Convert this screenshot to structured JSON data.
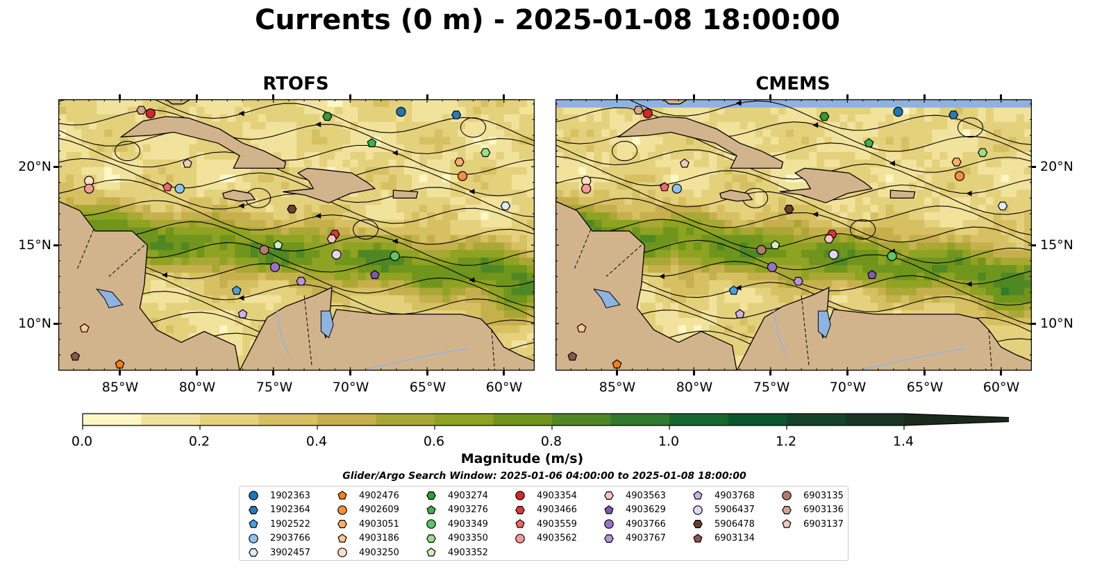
{
  "title": "Currents (0 m) - 2025-01-08 18:00:00",
  "panels": [
    {
      "title": "RTOFS"
    },
    {
      "title": "CMEMS"
    }
  ],
  "x_ticks": [
    "85°W",
    "80°W",
    "75°W",
    "70°W",
    "65°W",
    "60°W"
  ],
  "y_ticks": [
    "20°N",
    "15°N",
    "10°N"
  ],
  "colorbar": {
    "label": "Magnitude (m/s)",
    "ticks": [
      "0.0",
      "0.2",
      "0.4",
      "0.6",
      "0.8",
      "1.0",
      "1.2",
      "1.4"
    ],
    "min": 0.0,
    "max": 1.5,
    "step": 0.1,
    "extend": "max",
    "colors": [
      "#fcf7c4",
      "#f1e39c",
      "#e4d17c",
      "#d6c062",
      "#c6b04d",
      "#a9a834",
      "#8ea322",
      "#6f951c",
      "#4f8724",
      "#2f7a2c",
      "#15682f",
      "#0c552d",
      "#134428",
      "#173522",
      "#1a2a1b"
    ]
  },
  "search_window": "Glider/Argo Search Window: 2025-01-06 04:00:00 to 2025-01-08 18:00:00",
  "legend": [
    {
      "label": "1902363",
      "marker": "circle",
      "color": "#1f77b4"
    },
    {
      "label": "1902364",
      "marker": "hexagon",
      "color": "#2b7bba"
    },
    {
      "label": "1902522",
      "marker": "pentagon",
      "color": "#4aa0dc"
    },
    {
      "label": "2903766",
      "marker": "circle",
      "color": "#8ec3ee"
    },
    {
      "label": "3902457",
      "marker": "hexagon",
      "color": "#dcecfa"
    },
    {
      "label": "4902476",
      "marker": "pentagon",
      "color": "#ff7f0e"
    },
    {
      "label": "4902609",
      "marker": "circle",
      "color": "#fd8d3c"
    },
    {
      "label": "4903051",
      "marker": "hexagon",
      "color": "#fdae6b"
    },
    {
      "label": "4903186",
      "marker": "pentagon",
      "color": "#fdc891"
    },
    {
      "label": "4903250",
      "marker": "circle",
      "color": "#fee0c0"
    },
    {
      "label": "4903274",
      "marker": "hexagon",
      "color": "#2ca02c"
    },
    {
      "label": "4903276",
      "marker": "pentagon",
      "color": "#3bb34a"
    },
    {
      "label": "4903349",
      "marker": "circle",
      "color": "#5cc566"
    },
    {
      "label": "4903350",
      "marker": "hexagon",
      "color": "#98df8a"
    },
    {
      "label": "4903352",
      "marker": "pentagon",
      "color": "#c9f2bd"
    },
    {
      "label": "4903354",
      "marker": "circle",
      "color": "#d62728"
    },
    {
      "label": "4903466",
      "marker": "hexagon",
      "color": "#e0383c"
    },
    {
      "label": "4903559",
      "marker": "pentagon",
      "color": "#f0686b"
    },
    {
      "label": "4903562",
      "marker": "circle",
      "color": "#f49a9a"
    },
    {
      "label": "4903563",
      "marker": "hexagon",
      "color": "#f8c3c3"
    },
    {
      "label": "4903629",
      "marker": "pentagon",
      "color": "#7f58b5"
    },
    {
      "label": "4903766",
      "marker": "circle",
      "color": "#9a72c8"
    },
    {
      "label": "4903767",
      "marker": "hexagon",
      "color": "#b494dc"
    },
    {
      "label": "4903768",
      "marker": "pentagon",
      "color": "#cdb3ea"
    },
    {
      "label": "5906437",
      "marker": "circle",
      "color": "#e3d3f6"
    },
    {
      "label": "5906478",
      "marker": "hexagon",
      "color": "#6b3f2e"
    },
    {
      "label": "6903134",
      "marker": "pentagon",
      "color": "#8c564b"
    },
    {
      "label": "6903135",
      "marker": "circle",
      "color": "#b07c6e"
    },
    {
      "label": "6903136",
      "marker": "hexagon",
      "color": "#d4a593"
    },
    {
      "label": "6903137",
      "marker": "pentagon",
      "color": "#f2cbb8"
    }
  ],
  "chart_data": [
    {
      "type": "heatmap",
      "title": "RTOFS",
      "variable": "Magnitude (m/s)",
      "xlim": [
        -89,
        -58
      ],
      "ylim": [
        7,
        24.3
      ],
      "zlim": [
        0,
        1.5
      ],
      "streamlines": true,
      "features": {
        "land": "#d2b48c",
        "lakes": "#8fb3e0"
      },
      "float_positions": [
        {
          "id": "1902363",
          "lon": -66.7,
          "lat": 23.5
        },
        {
          "id": "1902364",
          "lon": -63.1,
          "lat": 23.3
        },
        {
          "id": "1902522",
          "lon": -77.4,
          "lat": 12.1
        },
        {
          "id": "2903766",
          "lon": -81.1,
          "lat": 18.6
        },
        {
          "id": "3902457",
          "lon": -59.9,
          "lat": 17.5
        },
        {
          "id": "4902476",
          "lon": -85.0,
          "lat": 7.4
        },
        {
          "id": "4902609",
          "lon": -62.7,
          "lat": 19.4
        },
        {
          "id": "4903051",
          "lon": -62.9,
          "lat": 20.3
        },
        {
          "id": "4903186",
          "lon": -87.3,
          "lat": 9.7
        },
        {
          "id": "4903250",
          "lon": -87.0,
          "lat": 19.1
        },
        {
          "id": "4903274",
          "lon": -71.5,
          "lat": 23.2
        },
        {
          "id": "4903276",
          "lon": -68.6,
          "lat": 21.5
        },
        {
          "id": "4903349",
          "lon": -67.1,
          "lat": 14.3
        },
        {
          "id": "4903350",
          "lon": -61.2,
          "lat": 20.9
        },
        {
          "id": "4903352",
          "lon": -74.7,
          "lat": 15.0
        },
        {
          "id": "4903354",
          "lon": -83.0,
          "lat": 23.4
        },
        {
          "id": "4903466",
          "lon": -71.0,
          "lat": 15.7
        },
        {
          "id": "4903559",
          "lon": -81.9,
          "lat": 18.7
        },
        {
          "id": "4903562",
          "lon": -87.0,
          "lat": 18.6
        },
        {
          "id": "4903563",
          "lon": -71.2,
          "lat": 15.4
        },
        {
          "id": "4903629",
          "lon": -68.4,
          "lat": 13.1
        },
        {
          "id": "4903766",
          "lon": -74.9,
          "lat": 13.6
        },
        {
          "id": "4903767",
          "lon": -73.2,
          "lat": 12.7
        },
        {
          "id": "4903768",
          "lon": -77.0,
          "lat": 10.6
        },
        {
          "id": "5906437",
          "lon": -70.9,
          "lat": 14.4
        },
        {
          "id": "5906478",
          "lon": -73.8,
          "lat": 17.3
        },
        {
          "id": "6903134",
          "lon": -87.9,
          "lat": 7.9
        },
        {
          "id": "6903135",
          "lon": -75.6,
          "lat": 14.7
        },
        {
          "id": "6903136",
          "lon": -83.6,
          "lat": 23.6
        },
        {
          "id": "6903137",
          "lon": -80.6,
          "lat": 20.2
        }
      ]
    },
    {
      "type": "heatmap",
      "title": "CMEMS",
      "variable": "Magnitude (m/s)",
      "xlim": [
        -89,
        -58
      ],
      "ylim": [
        7,
        24.3
      ],
      "zlim": [
        0,
        1.5
      ],
      "streamlines": true,
      "features": {
        "land": "#d2b48c",
        "lakes": "#8fb3e0",
        "no_data_band": "#8fb3e0"
      },
      "float_positions": [
        {
          "id": "1902363",
          "lon": -66.7,
          "lat": 23.5
        },
        {
          "id": "1902364",
          "lon": -63.1,
          "lat": 23.3
        },
        {
          "id": "1902522",
          "lon": -77.4,
          "lat": 12.1
        },
        {
          "id": "2903766",
          "lon": -81.1,
          "lat": 18.6
        },
        {
          "id": "3902457",
          "lon": -59.9,
          "lat": 17.5
        },
        {
          "id": "4902476",
          "lon": -85.0,
          "lat": 7.4
        },
        {
          "id": "4902609",
          "lon": -62.7,
          "lat": 19.4
        },
        {
          "id": "4903051",
          "lon": -62.9,
          "lat": 20.3
        },
        {
          "id": "4903186",
          "lon": -87.3,
          "lat": 9.7
        },
        {
          "id": "4903250",
          "lon": -87.0,
          "lat": 19.1
        },
        {
          "id": "4903274",
          "lon": -71.5,
          "lat": 23.2
        },
        {
          "id": "4903276",
          "lon": -68.6,
          "lat": 21.5
        },
        {
          "id": "4903349",
          "lon": -67.1,
          "lat": 14.3
        },
        {
          "id": "4903350",
          "lon": -61.2,
          "lat": 20.9
        },
        {
          "id": "4903352",
          "lon": -74.7,
          "lat": 15.0
        },
        {
          "id": "4903354",
          "lon": -83.0,
          "lat": 23.4
        },
        {
          "id": "4903466",
          "lon": -71.0,
          "lat": 15.7
        },
        {
          "id": "4903559",
          "lon": -81.9,
          "lat": 18.7
        },
        {
          "id": "4903562",
          "lon": -87.0,
          "lat": 18.6
        },
        {
          "id": "4903563",
          "lon": -71.2,
          "lat": 15.4
        },
        {
          "id": "4903629",
          "lon": -68.4,
          "lat": 13.1
        },
        {
          "id": "4903766",
          "lon": -74.9,
          "lat": 13.6
        },
        {
          "id": "4903767",
          "lon": -73.2,
          "lat": 12.7
        },
        {
          "id": "4903768",
          "lon": -77.0,
          "lat": 10.6
        },
        {
          "id": "5906437",
          "lon": -70.9,
          "lat": 14.4
        },
        {
          "id": "5906478",
          "lon": -73.8,
          "lat": 17.3
        },
        {
          "id": "6903134",
          "lon": -87.9,
          "lat": 7.9
        },
        {
          "id": "6903135",
          "lon": -75.6,
          "lat": 14.7
        },
        {
          "id": "6903136",
          "lon": -83.6,
          "lat": 23.6
        },
        {
          "id": "6903137",
          "lon": -80.6,
          "lat": 20.2
        }
      ]
    }
  ]
}
